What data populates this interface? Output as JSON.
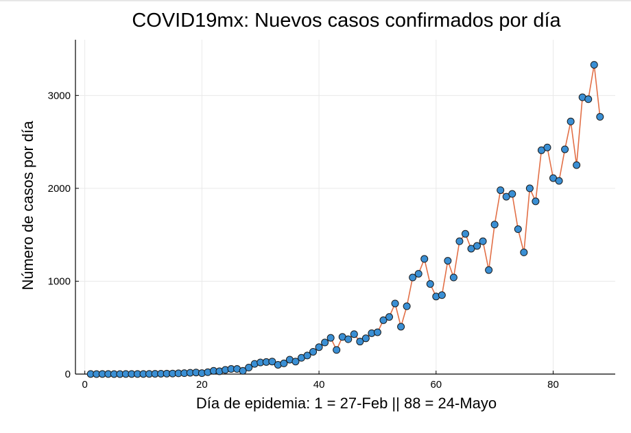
{
  "chart_data": {
    "type": "line",
    "title": "COVID19mx: Nuevos casos confirmados por día",
    "xlabel": "Día de epidemia: 1 = 27-Feb || 88 = 24-Mayo",
    "ylabel": "Número de casos por día",
    "xlim": [
      -1.6,
      90.6
    ],
    "ylim": [
      0,
      3600
    ],
    "x_ticks": [
      0,
      20,
      40,
      60,
      80
    ],
    "y_ticks": [
      0,
      1000,
      2000,
      3000
    ],
    "grid": true,
    "legend": "none",
    "line_color": "#e26f46",
    "marker_color": "#3a8fd4",
    "x": [
      1,
      2,
      3,
      4,
      5,
      6,
      7,
      8,
      9,
      10,
      11,
      12,
      13,
      14,
      15,
      16,
      17,
      18,
      19,
      20,
      21,
      22,
      23,
      24,
      25,
      26,
      27,
      28,
      29,
      30,
      31,
      32,
      33,
      34,
      35,
      36,
      37,
      38,
      39,
      40,
      41,
      42,
      43,
      44,
      45,
      46,
      47,
      48,
      49,
      50,
      51,
      52,
      53,
      54,
      55,
      56,
      57,
      58,
      59,
      60,
      61,
      62,
      63,
      64,
      65,
      66,
      67,
      68,
      69,
      70,
      71,
      72,
      73,
      74,
      75,
      76,
      77,
      78,
      79,
      80,
      81,
      82,
      83,
      84,
      85,
      86,
      87,
      88
    ],
    "values": [
      1,
      0,
      1,
      1,
      0,
      0,
      1,
      1,
      1,
      1,
      2,
      3,
      4,
      5,
      6,
      8,
      10,
      14,
      17,
      10,
      20,
      35,
      30,
      45,
      55,
      55,
      35,
      70,
      110,
      125,
      130,
      135,
      100,
      115,
      155,
      135,
      175,
      200,
      240,
      290,
      340,
      390,
      260,
      400,
      375,
      430,
      350,
      385,
      440,
      450,
      580,
      615,
      760,
      510,
      730,
      1040,
      1080,
      1240,
      970,
      835,
      850,
      1220,
      1040,
      1430,
      1510,
      1350,
      1380,
      1430,
      1120,
      1610,
      1980,
      1910,
      1940,
      1560,
      1310,
      2000,
      1860,
      2410,
      2440,
      2110,
      2080,
      2420,
      2720,
      2250,
      2980,
      2960,
      3330,
      2770
    ]
  }
}
